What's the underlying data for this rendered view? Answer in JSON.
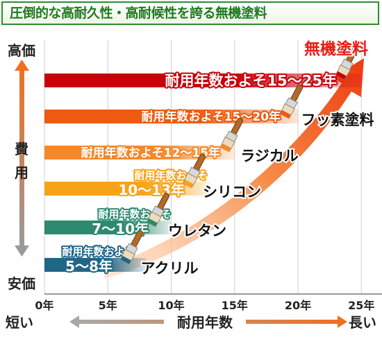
{
  "title": "圧倒的な高耐久性・高耐候性を誇る無機塗料",
  "y_axis": {
    "top": "高価",
    "middle": [
      "費",
      "用"
    ],
    "bottom": "安価"
  },
  "x_axis": {
    "left": "短い",
    "label": "耐用年数",
    "right": "長い"
  },
  "colors": {
    "title": "#1e7a1e",
    "arrow_orange": "#f07020",
    "grid": "#cfcfcf"
  },
  "chart_data": {
    "type": "bar",
    "orientation": "horizontal",
    "xlim": [
      0,
      27
    ],
    "x_unit": "年",
    "x_ticks": [
      0,
      5,
      10,
      15,
      20,
      25
    ],
    "x_tick_labels": [
      "0年",
      "5年",
      "10年",
      "15年",
      "20年",
      "25年"
    ],
    "grid": true,
    "categories": [
      "無機塗料",
      "フッ素塗料",
      "ラジカル",
      "シリコン",
      "ウレタン",
      "アクリル"
    ],
    "bars": [
      {
        "name": "無機塗料",
        "min": 15,
        "max": 25,
        "color": "#c8000a",
        "label_lines": [
          "耐用年数およそ15〜25年"
        ]
      },
      {
        "name": "フッ素塗料",
        "min": 15,
        "max": 20,
        "color": "#ee5a10",
        "label_lines": [
          "耐用年数およそ15〜20年"
        ]
      },
      {
        "name": "ラジカル",
        "min": 12,
        "max": 15,
        "color": "#f4882a",
        "label_lines": [
          "耐用年数およそ12〜15年"
        ]
      },
      {
        "name": "シリコン",
        "min": 10,
        "max": 13,
        "color": "#f7a318",
        "label_lines": [
          "耐用年数およそ",
          "10〜13年"
        ]
      },
      {
        "name": "ウレタン",
        "min": 7,
        "max": 10,
        "color": "#2e8a6e",
        "label_lines": [
          "耐用年数およそ",
          "7〜10年"
        ]
      },
      {
        "name": "アクリル",
        "min": 5,
        "max": 8,
        "color": "#1f6688",
        "label_lines": [
          "耐用年数およそ",
          "5〜8年"
        ]
      }
    ]
  },
  "icons": [
    "paintbrush-icon"
  ]
}
